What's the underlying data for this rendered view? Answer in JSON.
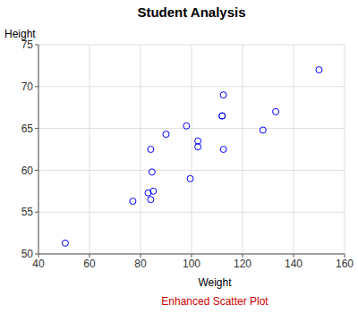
{
  "chart_data": {
    "type": "scatter",
    "title": "Student Analysis",
    "footnote": "Enhanced Scatter Plot",
    "x_label": "Weight",
    "y_label": "Height",
    "x": [
      112.5,
      84.0,
      98.0,
      102.5,
      102.5,
      83.0,
      84.5,
      112.5,
      84.0,
      99.5,
      50.5,
      90.0,
      77.0,
      112.0,
      150.0,
      128.0,
      133.0,
      85.0,
      112.0
    ],
    "values": [
      69.0,
      56.5,
      65.3,
      62.8,
      63.5,
      57.3,
      59.8,
      62.5,
      62.5,
      59.0,
      51.3,
      64.3,
      56.3,
      66.5,
      72.0,
      64.8,
      67.0,
      57.5,
      66.5
    ],
    "xlim": [
      40,
      160
    ],
    "xticks": [
      40,
      60,
      80,
      100,
      120,
      140,
      160
    ],
    "ylim": [
      50,
      75
    ],
    "yticks": [
      50,
      55,
      60,
      65,
      70,
      75
    ],
    "grid": true,
    "color": "#0000ff",
    "marker": "circle"
  }
}
